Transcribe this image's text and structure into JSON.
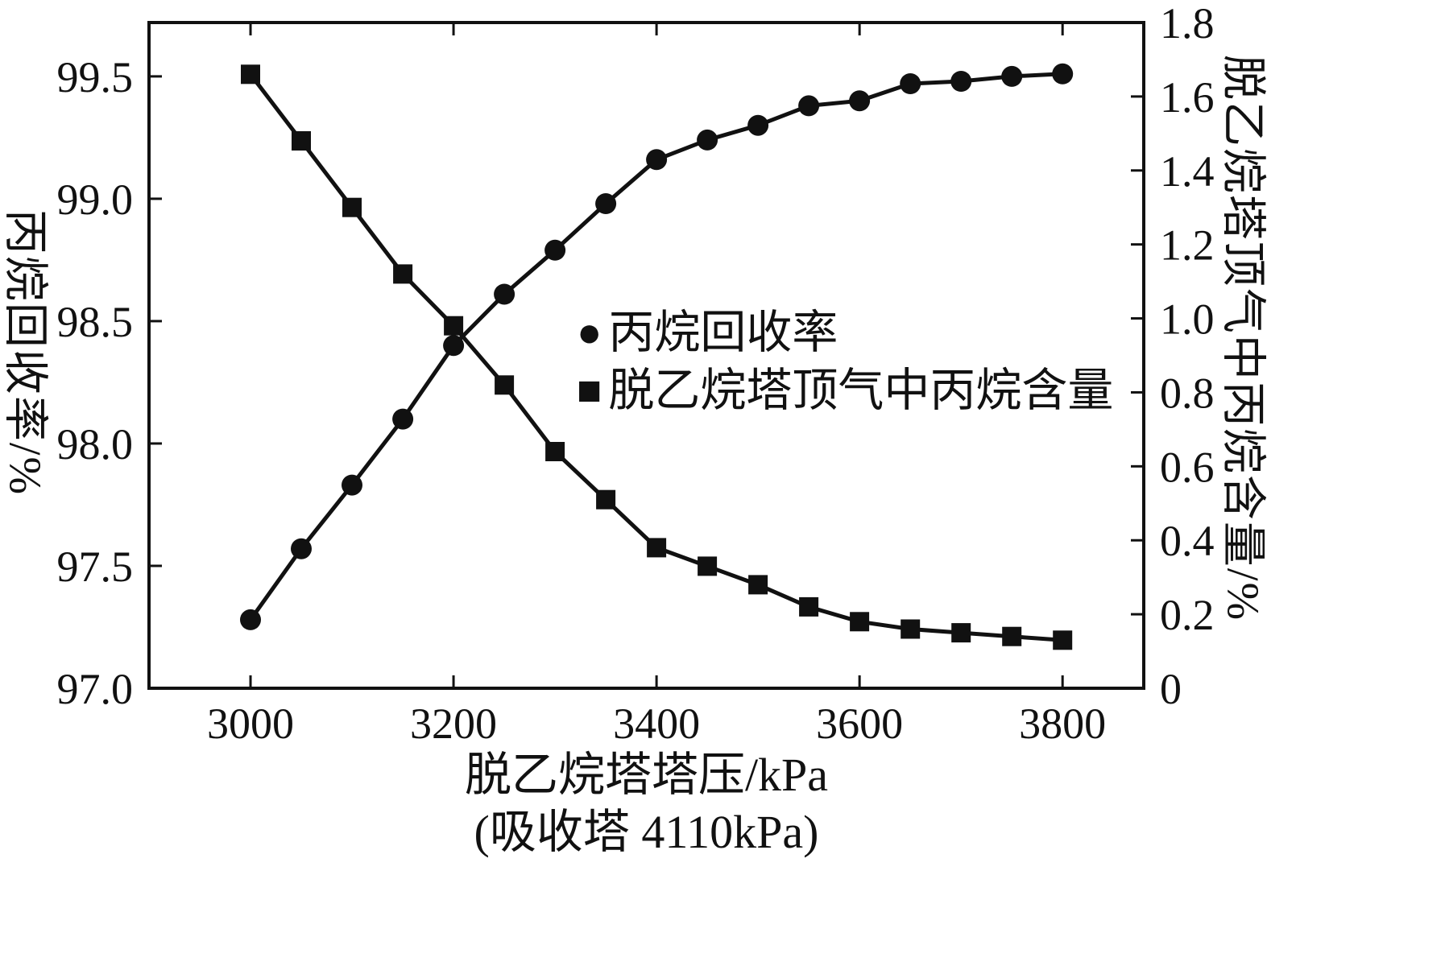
{
  "icons": {
    "circle_marker": "●",
    "square_marker": "■"
  },
  "chart_data": {
    "type": "line",
    "xlabel_line1": "脱乙烷塔塔压/kPa",
    "xlabel_line2": "(吸收塔 4110kPa)",
    "ylabel_left": "丙烷回收率/%",
    "ylabel_right": "脱乙烷塔顶气中丙烷含量/%",
    "xlim": [
      2900,
      3880
    ],
    "ylim_left": [
      97.0,
      99.72
    ],
    "ylim_right": [
      0,
      1.8
    ],
    "xticks": [
      "3000",
      "3200",
      "3400",
      "3600",
      "3800"
    ],
    "yticks_left": [
      "97.0",
      "97.5",
      "98.0",
      "98.5",
      "99.0",
      "99.5"
    ],
    "yticks_right": [
      "0",
      "0.2",
      "0.4",
      "0.6",
      "0.8",
      "1.0",
      "1.2",
      "1.4",
      "1.6",
      "1.8"
    ],
    "x": [
      3000,
      3050,
      3100,
      3150,
      3200,
      3250,
      3300,
      3350,
      3400,
      3450,
      3500,
      3550,
      3600,
      3650,
      3700,
      3750,
      3800
    ],
    "series": [
      {
        "name": "丙烷回收率",
        "axis": "left",
        "marker": "circle",
        "values": [
          97.28,
          97.57,
          97.83,
          98.1,
          98.4,
          98.61,
          98.79,
          98.98,
          99.16,
          99.24,
          99.3,
          99.38,
          99.4,
          99.47,
          99.48,
          99.5,
          99.51
        ]
      },
      {
        "name": "脱乙烷塔顶气中丙烷含量",
        "axis": "right",
        "marker": "square",
        "values": [
          1.66,
          1.48,
          1.3,
          1.12,
          0.98,
          0.82,
          0.64,
          0.51,
          0.38,
          0.33,
          0.28,
          0.22,
          0.18,
          0.16,
          0.15,
          0.14,
          0.13
        ]
      }
    ],
    "line_color": "#111111",
    "background": "#ffffff",
    "grid": false,
    "legend_position": "inside-center-right"
  }
}
